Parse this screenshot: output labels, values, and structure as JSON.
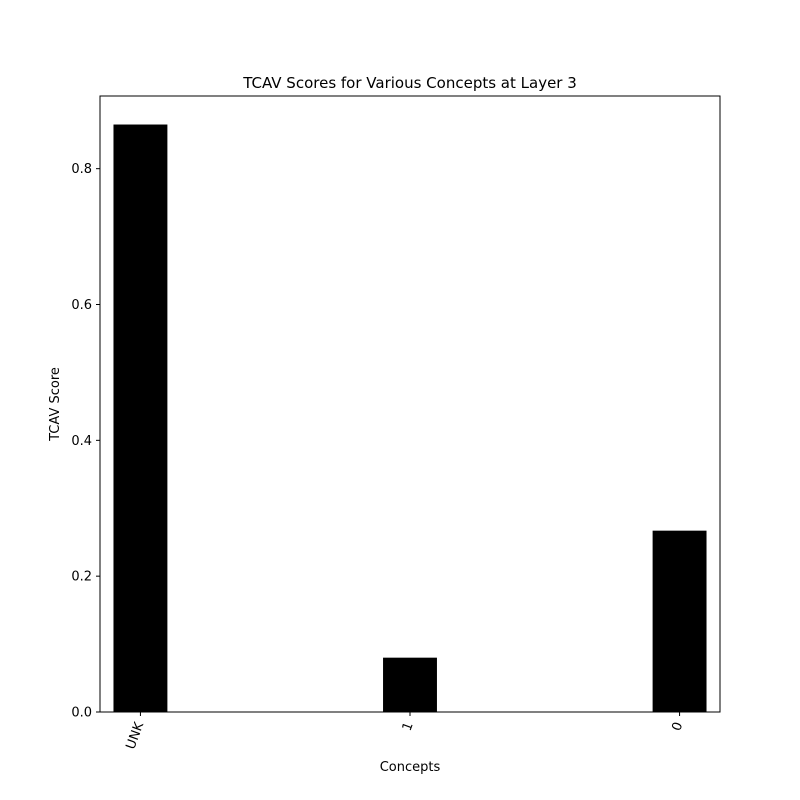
{
  "chart_data": {
    "type": "bar",
    "title": "TCAV Scores for Various Concepts at Layer 3",
    "xlabel": "Concepts",
    "ylabel": "TCAV Score",
    "categories": [
      "UNK",
      "1",
      "0"
    ],
    "values": [
      0.865,
      0.08,
      0.267
    ],
    "ylim": [
      0,
      0.907
    ],
    "yticks": [
      "0.0",
      "0.2",
      "0.4",
      "0.6",
      "0.8"
    ],
    "ytick_values": [
      0,
      0.2,
      0.4,
      0.6,
      0.8
    ],
    "bar_color": "#000000",
    "grid": false,
    "legend": "none"
  }
}
